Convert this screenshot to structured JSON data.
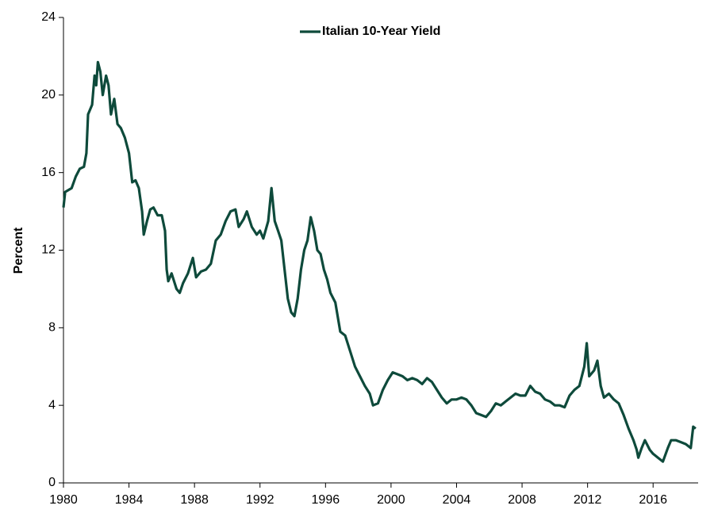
{
  "chart_data": {
    "type": "line",
    "y_label": "Percent",
    "legend": "top",
    "xlim": [
      1980,
      2018.75
    ],
    "xticks": [
      1980,
      1984,
      1988,
      1992,
      1996,
      2000,
      2004,
      2008,
      2012,
      2016
    ],
    "ylim": [
      0,
      24
    ],
    "yticks": [
      0,
      4,
      8,
      12,
      16,
      20,
      24
    ],
    "x": [
      1980.0,
      1980.1,
      1980.5,
      1980.75,
      1981.0,
      1981.25,
      1981.4,
      1981.5,
      1981.75,
      1981.9,
      1982.0,
      1982.1,
      1982.25,
      1982.4,
      1982.6,
      1982.75,
      1982.9,
      1983.1,
      1983.3,
      1983.5,
      1983.75,
      1984.0,
      1984.2,
      1984.4,
      1984.6,
      1984.8,
      1984.9,
      1985.1,
      1985.3,
      1985.5,
      1985.75,
      1986.0,
      1986.2,
      1986.3,
      1986.4,
      1986.6,
      1986.9,
      1987.1,
      1987.3,
      1987.6,
      1987.9,
      1988.1,
      1988.4,
      1988.7,
      1989.0,
      1989.3,
      1989.6,
      1989.9,
      1990.2,
      1990.5,
      1990.7,
      1991.0,
      1991.2,
      1991.5,
      1991.8,
      1992.0,
      1992.2,
      1992.5,
      1992.7,
      1992.9,
      1993.1,
      1993.3,
      1993.5,
      1993.7,
      1993.9,
      1994.1,
      1994.3,
      1994.5,
      1994.7,
      1994.9,
      1995.1,
      1995.3,
      1995.5,
      1995.7,
      1995.9,
      1996.1,
      1996.3,
      1996.6,
      1996.9,
      1997.2,
      1997.5,
      1997.8,
      1998.1,
      1998.4,
      1998.7,
      1998.9,
      1999.2,
      1999.5,
      1999.8,
      2000.1,
      2000.4,
      2000.7,
      2001.0,
      2001.3,
      2001.6,
      2001.9,
      2002.2,
      2002.5,
      2002.8,
      2003.1,
      2003.4,
      2003.7,
      2004.0,
      2004.3,
      2004.6,
      2004.9,
      2005.2,
      2005.5,
      2005.8,
      2006.1,
      2006.4,
      2006.7,
      2007.0,
      2007.3,
      2007.6,
      2007.9,
      2008.2,
      2008.5,
      2008.8,
      2009.1,
      2009.4,
      2009.7,
      2010.0,
      2010.3,
      2010.6,
      2010.9,
      2011.2,
      2011.5,
      2011.8,
      2011.95,
      2012.1,
      2012.4,
      2012.6,
      2012.8,
      2013.0,
      2013.3,
      2013.6,
      2013.9,
      2014.2,
      2014.5,
      2014.8,
      2015.0,
      2015.1,
      2015.3,
      2015.5,
      2015.8,
      2016.0,
      2016.3,
      2016.6,
      2016.9,
      2017.1,
      2017.4,
      2017.7,
      2018.0,
      2018.3,
      2018.45,
      2018.6
    ],
    "series": [
      {
        "name": "Italian 10-Year Yield",
        "color": "#0e4a3b",
        "values": [
          14.2,
          15.0,
          15.2,
          15.8,
          16.2,
          16.3,
          17.0,
          19.0,
          19.5,
          21.0,
          20.5,
          21.7,
          21.2,
          20.0,
          21.0,
          20.5,
          19.0,
          19.8,
          18.5,
          18.3,
          17.8,
          17.0,
          15.5,
          15.6,
          15.2,
          14.0,
          12.8,
          13.5,
          14.1,
          14.2,
          13.8,
          13.8,
          13.0,
          11.0,
          10.4,
          10.8,
          10.0,
          9.8,
          10.3,
          10.8,
          11.6,
          10.6,
          10.9,
          11.0,
          11.3,
          12.5,
          12.8,
          13.5,
          14.0,
          14.1,
          13.2,
          13.6,
          14.0,
          13.2,
          12.8,
          13.0,
          12.6,
          13.5,
          15.2,
          13.5,
          13.0,
          12.5,
          11.0,
          9.5,
          8.8,
          8.6,
          9.5,
          11.0,
          12.0,
          12.5,
          13.7,
          13.0,
          12.0,
          11.8,
          11.0,
          10.5,
          9.8,
          9.3,
          7.8,
          7.6,
          6.8,
          6.0,
          5.5,
          5.0,
          4.6,
          4.0,
          4.1,
          4.8,
          5.3,
          5.7,
          5.6,
          5.5,
          5.3,
          5.4,
          5.3,
          5.1,
          5.4,
          5.2,
          4.8,
          4.4,
          4.1,
          4.3,
          4.3,
          4.4,
          4.3,
          4.0,
          3.6,
          3.5,
          3.4,
          3.7,
          4.1,
          4.0,
          4.2,
          4.4,
          4.6,
          4.5,
          4.5,
          5.0,
          4.7,
          4.6,
          4.3,
          4.2,
          4.0,
          4.0,
          3.9,
          4.5,
          4.8,
          5.0,
          6.0,
          7.2,
          5.5,
          5.8,
          6.3,
          5.0,
          4.4,
          4.6,
          4.3,
          4.1,
          3.5,
          2.8,
          2.2,
          1.7,
          1.3,
          1.8,
          2.2,
          1.7,
          1.5,
          1.3,
          1.1,
          1.8,
          2.2,
          2.2,
          2.1,
          2.0,
          1.8,
          2.9,
          2.8
        ]
      }
    ]
  }
}
